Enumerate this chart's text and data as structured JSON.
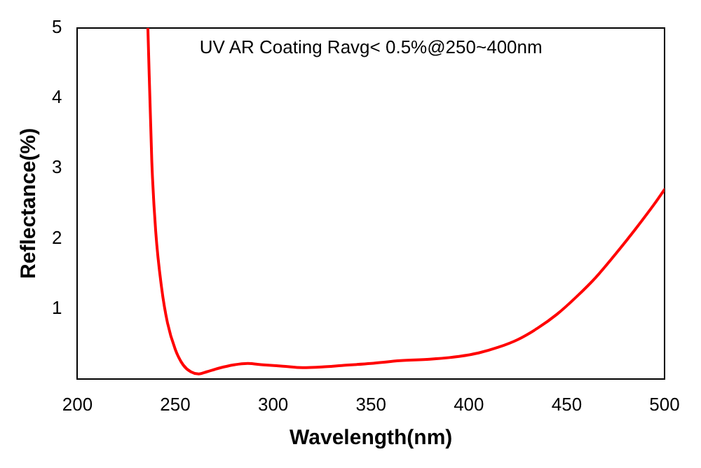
{
  "chart_data": {
    "type": "line",
    "xlabel": "Wavelength(nm)",
    "ylabel": "Reflectance(%)",
    "annotations": [
      "UV AR Coating Ravg< 0.5%@250~400nm"
    ],
    "series": [
      {
        "color": "#ff0000",
        "x": [
          236,
          238,
          240,
          243,
          246,
          250,
          254,
          258,
          262,
          266,
          272,
          280,
          287,
          295,
          305,
          315,
          325,
          335,
          350,
          365,
          380,
          395,
          405,
          415,
          425,
          435,
          445,
          455,
          465,
          475,
          485,
          495,
          500
        ],
        "values": [
          5,
          3.1,
          2.1,
          1.3,
          0.8,
          0.42,
          0.2,
          0.1,
          0.07,
          0.1,
          0.15,
          0.2,
          0.22,
          0.2,
          0.18,
          0.16,
          0.17,
          0.19,
          0.22,
          0.26,
          0.28,
          0.32,
          0.37,
          0.45,
          0.56,
          0.72,
          0.92,
          1.17,
          1.45,
          1.78,
          2.13,
          2.5,
          2.7
        ]
      }
    ],
    "xlim": [
      200,
      500
    ],
    "xticks": [
      200,
      250,
      300,
      350,
      400,
      450,
      500
    ],
    "ylim": [
      0,
      5
    ],
    "yticks": [
      1,
      2,
      3,
      4,
      5
    ],
    "grid": false,
    "legend": false,
    "marker": "none",
    "line_style": "solid"
  }
}
